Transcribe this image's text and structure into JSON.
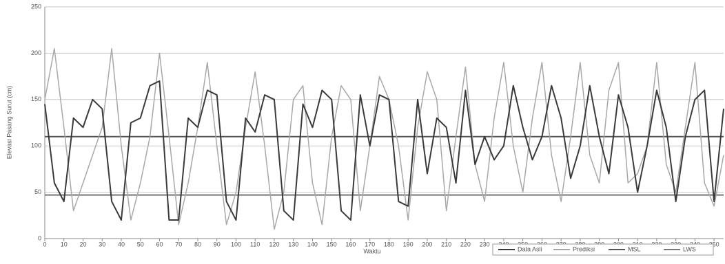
{
  "chart_data": {
    "type": "line",
    "x": [
      0,
      5,
      10,
      15,
      20,
      25,
      30,
      35,
      40,
      45,
      50,
      55,
      60,
      65,
      70,
      75,
      80,
      85,
      90,
      95,
      100,
      105,
      110,
      115,
      120,
      125,
      130,
      135,
      140,
      145,
      150,
      155,
      160,
      165,
      170,
      175,
      180,
      185,
      190,
      195,
      200,
      205,
      210,
      215,
      220,
      225,
      230,
      235,
      240,
      245,
      250,
      255,
      260,
      265,
      270,
      275,
      280,
      285,
      290,
      295,
      300,
      305,
      310,
      315,
      320,
      325,
      330,
      335,
      340,
      345,
      350,
      355
    ],
    "series": [
      {
        "name": "Data Asli",
        "color": "#3a3a3a",
        "width": 2,
        "values": [
          145,
          60,
          40,
          130,
          120,
          150,
          140,
          40,
          20,
          125,
          130,
          165,
          170,
          20,
          20,
          130,
          120,
          160,
          155,
          40,
          20,
          130,
          115,
          155,
          150,
          30,
          20,
          145,
          120,
          160,
          150,
          30,
          20,
          155,
          100,
          155,
          150,
          40,
          35,
          150,
          70,
          130,
          120,
          60,
          160,
          80,
          110,
          85,
          100,
          165,
          120,
          85,
          110,
          165,
          130,
          65,
          100,
          165,
          110,
          70,
          155,
          120,
          50,
          100,
          160,
          120,
          40,
          110,
          150,
          160,
          40,
          140
        ]
      },
      {
        "name": "Prediksi",
        "color": "#a8a8a8",
        "width": 1.5,
        "values": [
          150,
          205,
          120,
          30,
          60,
          90,
          120,
          205,
          100,
          20,
          60,
          110,
          200,
          110,
          15,
          60,
          120,
          190,
          100,
          15,
          50,
          120,
          180,
          100,
          10,
          50,
          150,
          165,
          60,
          15,
          110,
          165,
          150,
          30,
          100,
          175,
          150,
          100,
          20,
          120,
          180,
          150,
          30,
          110,
          185,
          80,
          40,
          130,
          190,
          100,
          50,
          130,
          190,
          90,
          40,
          110,
          190,
          90,
          60,
          160,
          190,
          60,
          70,
          100,
          190,
          80,
          50,
          120,
          190,
          60,
          35,
          90
        ]
      }
    ],
    "hlines": [
      {
        "name": "MSL",
        "value": 110,
        "color": "#555555"
      },
      {
        "name": "LWS",
        "value": 47,
        "color": "#777777"
      }
    ],
    "xlabel": "Waktu",
    "ylabel": "Elevasi Pasang Surut (cm)",
    "xlim": [
      0,
      355
    ],
    "ylim": [
      0,
      250
    ],
    "xticks": [
      0,
      10,
      20,
      30,
      40,
      50,
      60,
      70,
      80,
      90,
      100,
      110,
      120,
      130,
      140,
      150,
      160,
      170,
      180,
      190,
      200,
      210,
      220,
      230,
      240,
      250,
      260,
      270,
      280,
      290,
      300,
      310,
      320,
      330,
      340,
      350
    ],
    "yticks": [
      0,
      50,
      100,
      150,
      200,
      250
    ],
    "grid": true
  }
}
